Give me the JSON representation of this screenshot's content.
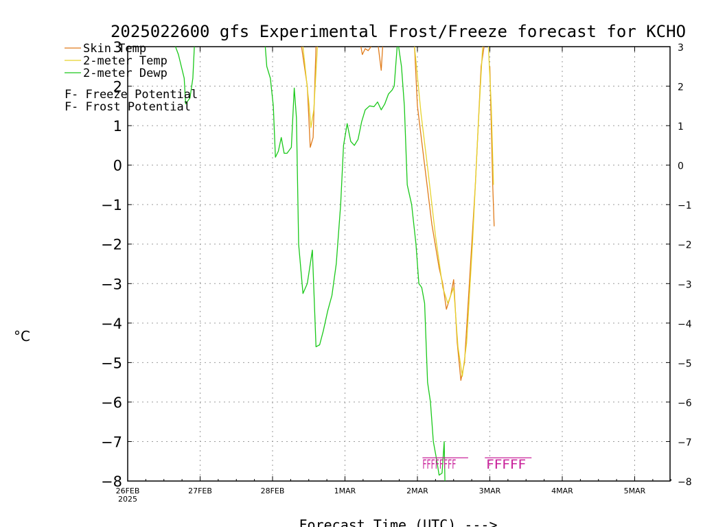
{
  "chart_data": {
    "type": "line",
    "title": "2025022600 gfs Experimental Frost/Freeze forecast for KCHO",
    "xlabel": "Forecast Time (UTC) --->",
    "ylabel": "°C",
    "ylim": [
      -8,
      3
    ],
    "xlim": [
      0,
      7.5
    ],
    "y_ticks": [
      3,
      2,
      1,
      0,
      -1,
      -2,
      -3,
      -4,
      -5,
      -6,
      -7,
      -8
    ],
    "y_tick_labels": [
      "3",
      "2",
      "1",
      "0",
      "−1",
      "−2",
      "−3",
      "−4",
      "−5",
      "−6",
      "−7",
      "−8"
    ],
    "x_ticks": [
      0,
      1,
      2,
      3,
      4,
      5,
      6,
      7
    ],
    "x_tick_labels": [
      "26FEB",
      "27FEB",
      "28FEB",
      "1MAR",
      "2MAR",
      "3MAR",
      "4MAR",
      "5MAR"
    ],
    "x_sub_label": "2025",
    "grid": true,
    "legend": "top-left",
    "colors": {
      "skin": "#e07b1a",
      "temp": "#e6d22b",
      "dewp": "#19c819",
      "freeze": "#c8209a",
      "frost": "#4848ff",
      "grid": "#9a9a9a"
    },
    "series": [
      {
        "name": "Skin Temp",
        "key": "skin",
        "segments": [
          [
            [
              2.4,
              3.0
            ],
            [
              2.48,
              2.0
            ],
            [
              2.52,
              0.45
            ],
            [
              2.56,
              0.7
            ],
            [
              2.6,
              3.0
            ]
          ],
          [
            [
              3.22,
              3.0
            ],
            [
              3.24,
              2.8
            ],
            [
              3.28,
              2.95
            ],
            [
              3.32,
              2.9
            ],
            [
              3.36,
              3.0
            ]
          ],
          [
            [
              3.46,
              3.0
            ],
            [
              3.5,
              2.4
            ],
            [
              3.52,
              3.0
            ]
          ],
          [
            [
              3.96,
              3.0
            ],
            [
              4.0,
              1.5
            ],
            [
              4.1,
              0.0
            ],
            [
              4.2,
              -1.5
            ],
            [
              4.3,
              -2.6
            ],
            [
              4.35,
              -3.0
            ],
            [
              4.4,
              -3.65
            ],
            [
              4.46,
              -3.3
            ],
            [
              4.5,
              -2.9
            ],
            [
              4.55,
              -4.5
            ],
            [
              4.6,
              -5.45
            ],
            [
              4.65,
              -5.0
            ],
            [
              4.7,
              -3.5
            ],
            [
              4.8,
              -0.5
            ],
            [
              4.88,
              2.5
            ],
            [
              4.92,
              3.0
            ]
          ],
          [
            [
              5.0,
              2.5
            ],
            [
              5.02,
              1.0
            ],
            [
              5.04,
              -0.5
            ],
            [
              5.06,
              -1.55
            ]
          ]
        ]
      },
      {
        "name": "2-meter Temp",
        "key": "temp",
        "segments": [
          [
            [
              2.42,
              3.0
            ],
            [
              2.5,
              1.6
            ],
            [
              2.53,
              0.95
            ],
            [
              2.57,
              1.4
            ],
            [
              2.62,
              3.0
            ]
          ],
          [
            [
              3.96,
              3.0
            ],
            [
              4.05,
              1.3
            ],
            [
              4.15,
              -0.2
            ],
            [
              4.25,
              -1.8
            ],
            [
              4.35,
              -3.1
            ],
            [
              4.42,
              -3.5
            ],
            [
              4.5,
              -3.1
            ],
            [
              4.56,
              -4.6
            ],
            [
              4.62,
              -5.35
            ],
            [
              4.68,
              -4.5
            ],
            [
              4.76,
              -2.0
            ],
            [
              4.84,
              1.0
            ],
            [
              4.9,
              3.0
            ]
          ],
          [
            [
              4.98,
              3.0
            ],
            [
              5.02,
              1.5
            ],
            [
              5.05,
              -0.5
            ]
          ]
        ]
      },
      {
        "name": "2-meter Dewp",
        "key": "dewp",
        "segments": [
          [
            [
              0.66,
              3.0
            ],
            [
              0.7,
              2.8
            ],
            [
              0.78,
              2.2
            ],
            [
              0.8,
              1.55
            ],
            [
              0.86,
              1.7
            ],
            [
              0.9,
              2.2
            ],
            [
              0.92,
              3.0
            ]
          ],
          [
            [
              1.9,
              3.0
            ],
            [
              1.92,
              2.5
            ],
            [
              1.97,
              2.2
            ],
            [
              2.01,
              1.5
            ],
            [
              2.04,
              0.2
            ],
            [
              2.08,
              0.35
            ],
            [
              2.12,
              0.7
            ],
            [
              2.16,
              0.3
            ],
            [
              2.2,
              0.3
            ],
            [
              2.26,
              0.45
            ],
            [
              2.3,
              1.95
            ],
            [
              2.33,
              1.2
            ],
            [
              2.36,
              -2.0
            ],
            [
              2.42,
              -3.25
            ],
            [
              2.48,
              -3.0
            ],
            [
              2.55,
              -2.15
            ],
            [
              2.6,
              -4.6
            ],
            [
              2.65,
              -4.55
            ],
            [
              2.7,
              -4.2
            ],
            [
              2.76,
              -3.7
            ],
            [
              2.82,
              -3.3
            ],
            [
              2.88,
              -2.5
            ],
            [
              2.94,
              -1.0
            ],
            [
              2.98,
              0.5
            ],
            [
              3.03,
              1.05
            ],
            [
              3.08,
              0.6
            ],
            [
              3.13,
              0.5
            ],
            [
              3.18,
              0.65
            ],
            [
              3.23,
              1.1
            ],
            [
              3.28,
              1.4
            ],
            [
              3.34,
              1.5
            ],
            [
              3.4,
              1.48
            ],
            [
              3.45,
              1.6
            ],
            [
              3.5,
              1.4
            ],
            [
              3.55,
              1.55
            ],
            [
              3.6,
              1.8
            ],
            [
              3.65,
              1.9
            ],
            [
              3.68,
              2.0
            ],
            [
              3.72,
              3.0
            ]
          ],
          [
            [
              3.74,
              3.0
            ],
            [
              3.78,
              2.5
            ],
            [
              3.82,
              1.5
            ],
            [
              3.86,
              -0.5
            ],
            [
              3.92,
              -1.0
            ],
            [
              3.98,
              -2.0
            ],
            [
              4.02,
              -3.0
            ],
            [
              4.06,
              -3.1
            ],
            [
              4.1,
              -3.5
            ],
            [
              4.14,
              -5.5
            ],
            [
              4.18,
              -6.0
            ],
            [
              4.22,
              -7.0
            ],
            [
              4.26,
              -7.4
            ],
            [
              4.3,
              -7.85
            ],
            [
              4.34,
              -7.8
            ],
            [
              4.37,
              -7.0
            ],
            [
              4.38,
              -8.0
            ]
          ]
        ]
      }
    ],
    "markers": {
      "legend_freeze": {
        "letter": "F",
        "label": " - Freeze Potential"
      },
      "legend_frost": {
        "letter": "F",
        "label": " - Frost Potential"
      },
      "freeze_text_1": "FFFFFFFF",
      "freeze_text_2": "FFFFF",
      "freeze_level": -7.55,
      "group1_x": [
        4.07,
        4.53
      ],
      "group2_x": [
        4.95,
        5.5
      ]
    }
  }
}
